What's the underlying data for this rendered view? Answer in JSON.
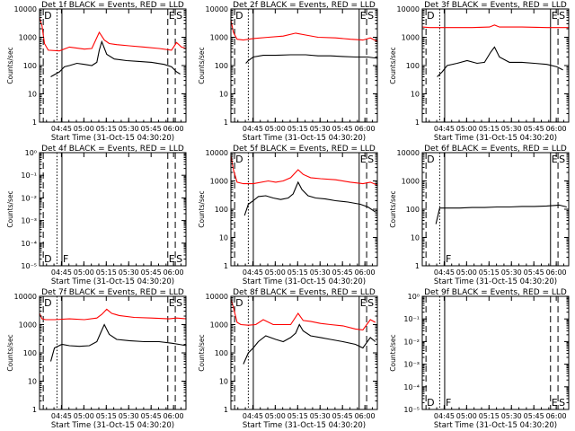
{
  "colors": {
    "events": "#000000",
    "lld": "#ff0000",
    "axis": "#000000",
    "background": "#ffffff"
  },
  "common": {
    "xlabel": "Start Time (31-Oct-15 04:30:20)",
    "ylabel": "Counts/sec",
    "xticks": [
      "04:45",
      "05:00",
      "05:15",
      "05:30",
      "05:45",
      "06:00"
    ],
    "xtick_seconds": [
      880,
      1780,
      2680,
      3580,
      4480,
      5380
    ],
    "xlim_seconds": [
      0,
      5880
    ]
  },
  "chart_data": [
    {
      "type": "line",
      "title": "Det 1f BLACK = Events, RED = LLD",
      "yscale": "log",
      "ylim": [
        1,
        10000
      ],
      "ytick_labels": [
        "1",
        "10",
        "100",
        "1000",
        "10000"
      ],
      "markers": [
        {
          "x": 150,
          "style": "dashed",
          "label": "D"
        },
        {
          "x": 700,
          "style": "dotted",
          "label": ""
        },
        {
          "x": 900,
          "style": "solid",
          "label": ""
        },
        {
          "x": 5150,
          "style": "dashed",
          "label": "E"
        },
        {
          "x": 5450,
          "style": "dashed",
          "label": "S"
        }
      ],
      "series": [
        {
          "name": "LLD",
          "color": "#ff0000",
          "x": [
            0,
            100,
            200,
            350,
            800,
            1200,
            1800,
            2100,
            2400,
            2600,
            2800,
            3100,
            3600,
            4200,
            4800,
            5300,
            5500,
            5700,
            5900
          ],
          "y": [
            5000,
            2500,
            600,
            350,
            330,
            450,
            380,
            400,
            1500,
            800,
            600,
            550,
            500,
            450,
            400,
            350,
            650,
            450,
            400
          ]
        },
        {
          "name": "Events",
          "color": "#000000",
          "x": [
            450,
            800,
            1000,
            1200,
            1500,
            1800,
            2100,
            2300,
            2400,
            2500,
            2700,
            3000,
            3500,
            4000,
            4500,
            5000,
            5300,
            5500,
            5650
          ],
          "y": [
            40,
            60,
            90,
            100,
            120,
            110,
            100,
            130,
            350,
            700,
            250,
            170,
            150,
            140,
            130,
            110,
            90,
            60,
            50
          ]
        }
      ]
    },
    {
      "type": "line",
      "title": "Det 2f BLACK = Events, RED = LLD",
      "yscale": "log",
      "ylim": [
        1,
        10000
      ],
      "ytick_labels": [
        "1",
        "10",
        "100",
        "1000",
        "10000"
      ],
      "markers": [
        {
          "x": 150,
          "style": "dashed",
          "label": "D"
        },
        {
          "x": 700,
          "style": "dotted",
          "label": ""
        },
        {
          "x": 900,
          "style": "solid",
          "label": ""
        },
        {
          "x": 5150,
          "style": "solid",
          "label": "E"
        },
        {
          "x": 5450,
          "style": "dashed",
          "label": "S"
        }
      ],
      "series": [
        {
          "name": "LLD",
          "color": "#ff0000",
          "x": [
            0,
            100,
            250,
            500,
            900,
            1500,
            2100,
            2600,
            3000,
            3500,
            4200,
            4800,
            5300,
            5600,
            5900
          ],
          "y": [
            4000,
            1500,
            850,
            800,
            900,
            1000,
            1100,
            1400,
            1200,
            1000,
            950,
            850,
            800,
            950,
            700
          ]
        },
        {
          "name": "Events",
          "color": "#000000",
          "x": [
            600,
            700,
            900,
            1300,
            1800,
            2400,
            3000,
            3500,
            4000,
            4500,
            5000,
            5500,
            5900
          ],
          "y": [
            120,
            150,
            200,
            230,
            230,
            240,
            240,
            220,
            220,
            210,
            200,
            200,
            180
          ]
        }
      ]
    },
    {
      "type": "line",
      "title": "Det 3f BLACK = Events, RED = LLD",
      "yscale": "log",
      "ylim": [
        1,
        10000
      ],
      "ytick_labels": [
        "1",
        "10",
        "100",
        "1000",
        "10000"
      ],
      "markers": [
        {
          "x": 150,
          "style": "dashed",
          "label": "D"
        },
        {
          "x": 700,
          "style": "dotted",
          "label": ""
        },
        {
          "x": 900,
          "style": "solid",
          "label": ""
        },
        {
          "x": 5150,
          "style": "solid",
          "label": "E"
        },
        {
          "x": 5450,
          "style": "dashed",
          "label": "S"
        }
      ],
      "series": [
        {
          "name": "LLD",
          "color": "#ff0000",
          "x": [
            0,
            300,
            1000,
            2000,
            2700,
            2900,
            3100,
            4000,
            5000,
            5900
          ],
          "y": [
            2300,
            2200,
            2200,
            2200,
            2300,
            2700,
            2300,
            2300,
            2200,
            2200
          ]
        },
        {
          "name": "Events",
          "color": "#000000",
          "x": [
            600,
            800,
            1000,
            1400,
            1800,
            2200,
            2500,
            2750,
            2900,
            3100,
            3500,
            4000,
            4500,
            5000,
            5400,
            5650
          ],
          "y": [
            40,
            60,
            100,
            120,
            150,
            120,
            130,
            300,
            450,
            200,
            130,
            130,
            120,
            110,
            90,
            70
          ]
        }
      ]
    },
    {
      "type": "line",
      "title": "Det 4f BLACK = Events, RED = LLD",
      "yscale": "log",
      "ylim": [
        1e-05,
        1
      ],
      "ytick_labels": [
        "10⁻⁵",
        "10⁻⁴",
        "10⁻³",
        "10⁻²",
        "10⁻¹",
        "10⁰"
      ],
      "markers": [
        {
          "x": 150,
          "style": "dashed",
          "label": "D"
        },
        {
          "x": 700,
          "style": "dotted",
          "label": ""
        },
        {
          "x": 900,
          "style": "solid",
          "label": "F"
        },
        {
          "x": 5150,
          "style": "dashed",
          "label": "E"
        },
        {
          "x": 5450,
          "style": "dashed",
          "label": "S"
        }
      ],
      "series": []
    },
    {
      "type": "line",
      "title": "Det 5f BLACK = Events, RED = LLD",
      "yscale": "log",
      "ylim": [
        1,
        10000
      ],
      "ytick_labels": [
        "1",
        "10",
        "100",
        "1000",
        "10000"
      ],
      "markers": [
        {
          "x": 150,
          "style": "dashed",
          "label": "D"
        },
        {
          "x": 700,
          "style": "dotted",
          "label": ""
        },
        {
          "x": 900,
          "style": "solid",
          "label": ""
        },
        {
          "x": 5150,
          "style": "solid",
          "label": "E"
        },
        {
          "x": 5450,
          "style": "dashed",
          "label": "S"
        }
      ],
      "series": [
        {
          "name": "LLD",
          "color": "#ff0000",
          "x": [
            0,
            100,
            250,
            500,
            900,
            1500,
            1800,
            2100,
            2400,
            2700,
            2900,
            3200,
            3600,
            4200,
            4800,
            5300,
            5600,
            5900
          ],
          "y": [
            8000,
            2500,
            900,
            800,
            800,
            1000,
            900,
            1000,
            1300,
            2500,
            1700,
            1300,
            1200,
            1100,
            900,
            800,
            900,
            700
          ]
        },
        {
          "name": "Events",
          "color": "#000000",
          "x": [
            550,
            700,
            900,
            1100,
            1400,
            1700,
            2000,
            2300,
            2500,
            2700,
            2850,
            3100,
            3400,
            3800,
            4200,
            4700,
            5200,
            5500,
            5800
          ],
          "y": [
            60,
            150,
            200,
            280,
            300,
            250,
            220,
            250,
            350,
            900,
            500,
            300,
            250,
            230,
            200,
            180,
            150,
            120,
            80
          ]
        }
      ]
    },
    {
      "type": "line",
      "title": "Det 6f BLACK = Events, RED = LLD",
      "yscale": "log",
      "ylim": [
        1,
        10000
      ],
      "ytick_labels": [
        "1",
        "10",
        "100",
        "1000",
        "10000"
      ],
      "markers": [
        {
          "x": 150,
          "style": "dashed",
          "label": "D"
        },
        {
          "x": 700,
          "style": "dotted",
          "label": ""
        },
        {
          "x": 900,
          "style": "solid",
          "label": "F"
        },
        {
          "x": 5150,
          "style": "solid",
          "label": "E"
        },
        {
          "x": 5450,
          "style": "dashed",
          "label": "S"
        }
      ],
      "series": [
        {
          "name": "Events",
          "color": "#000000",
          "x": [
            550,
            700,
            1000,
            1500,
            2000,
            2500,
            3000,
            3500,
            4000,
            4500,
            5000,
            5500,
            5800
          ],
          "y": [
            30,
            110,
            110,
            110,
            115,
            115,
            120,
            120,
            125,
            125,
            130,
            140,
            120
          ]
        }
      ]
    },
    {
      "type": "line",
      "title": "Det 7f BLACK = Events, RED = LLD",
      "yscale": "log",
      "ylim": [
        1,
        10000
      ],
      "ytick_labels": [
        "1",
        "10",
        "100",
        "1000",
        "10000"
      ],
      "markers": [
        {
          "x": 150,
          "style": "dashed",
          "label": "D"
        },
        {
          "x": 700,
          "style": "dotted",
          "label": ""
        },
        {
          "x": 900,
          "style": "solid",
          "label": ""
        },
        {
          "x": 5150,
          "style": "dashed",
          "label": "E"
        },
        {
          "x": 5450,
          "style": "dashed",
          "label": "S"
        }
      ],
      "series": [
        {
          "name": "LLD",
          "color": "#ff0000",
          "x": [
            0,
            100,
            250,
            600,
            1200,
            1800,
            2300,
            2500,
            2700,
            2900,
            3200,
            3800,
            4500,
            5200,
            5500,
            5900
          ],
          "y": [
            2500,
            1600,
            1500,
            1500,
            1600,
            1500,
            1700,
            2300,
            3500,
            2500,
            2100,
            1800,
            1700,
            1600,
            1700,
            1600
          ]
        },
        {
          "name": "Events",
          "color": "#000000",
          "x": [
            450,
            600,
            900,
            1200,
            1600,
            2000,
            2300,
            2450,
            2600,
            2800,
            3100,
            3600,
            4200,
            4800,
            5300,
            5600,
            5900
          ],
          "y": [
            50,
            150,
            200,
            180,
            170,
            180,
            250,
            500,
            1000,
            450,
            300,
            270,
            250,
            250,
            220,
            200,
            180
          ]
        }
      ]
    },
    {
      "type": "line",
      "title": "Det 8f BLACK = Events, RED = LLD",
      "yscale": "log",
      "ylim": [
        1,
        10000
      ],
      "ytick_labels": [
        "1",
        "10",
        "100",
        "1000",
        "10000"
      ],
      "markers": [
        {
          "x": 150,
          "style": "dashed",
          "label": "D"
        },
        {
          "x": 700,
          "style": "dotted",
          "label": ""
        },
        {
          "x": 900,
          "style": "solid",
          "label": ""
        },
        {
          "x": 5150,
          "style": "solid",
          "label": "E"
        },
        {
          "x": 5450,
          "style": "dashed",
          "label": "S"
        }
      ],
      "series": [
        {
          "name": "LLD",
          "color": "#ff0000",
          "x": [
            0,
            100,
            250,
            400,
            700,
            1000,
            1300,
            1700,
            2100,
            2400,
            2700,
            2900,
            3200,
            3600,
            4000,
            4500,
            5000,
            5300,
            5600,
            5800
          ],
          "y": [
            8000,
            4000,
            1200,
            1000,
            950,
            1000,
            1500,
            1000,
            1000,
            1000,
            2500,
            1400,
            1300,
            1100,
            1000,
            900,
            700,
            650,
            1500,
            1200
          ]
        },
        {
          "name": "Events",
          "color": "#000000",
          "x": [
            500,
            700,
            900,
            1100,
            1400,
            1800,
            2100,
            2400,
            2600,
            2750,
            2900,
            3200,
            3600,
            4000,
            4500,
            5000,
            5300,
            5600,
            5800
          ],
          "y": [
            40,
            100,
            150,
            250,
            400,
            300,
            250,
            350,
            500,
            1000,
            600,
            400,
            350,
            300,
            250,
            200,
            150,
            350,
            250
          ]
        }
      ]
    },
    {
      "type": "line",
      "title": "Det 9f BLACK = Events, RED = LLD",
      "yscale": "log",
      "ylim": [
        1e-05,
        1
      ],
      "ytick_labels": [
        "10⁻⁵",
        "10⁻⁴",
        "10⁻³",
        "10⁻²",
        "10⁻¹",
        "10⁰"
      ],
      "markers": [
        {
          "x": 150,
          "style": "dashed",
          "label": "D"
        },
        {
          "x": 700,
          "style": "dotted",
          "label": ""
        },
        {
          "x": 900,
          "style": "solid",
          "label": "F"
        },
        {
          "x": 5150,
          "style": "dashed",
          "label": "E"
        },
        {
          "x": 5450,
          "style": "dashed",
          "label": "S"
        }
      ],
      "series": []
    }
  ]
}
